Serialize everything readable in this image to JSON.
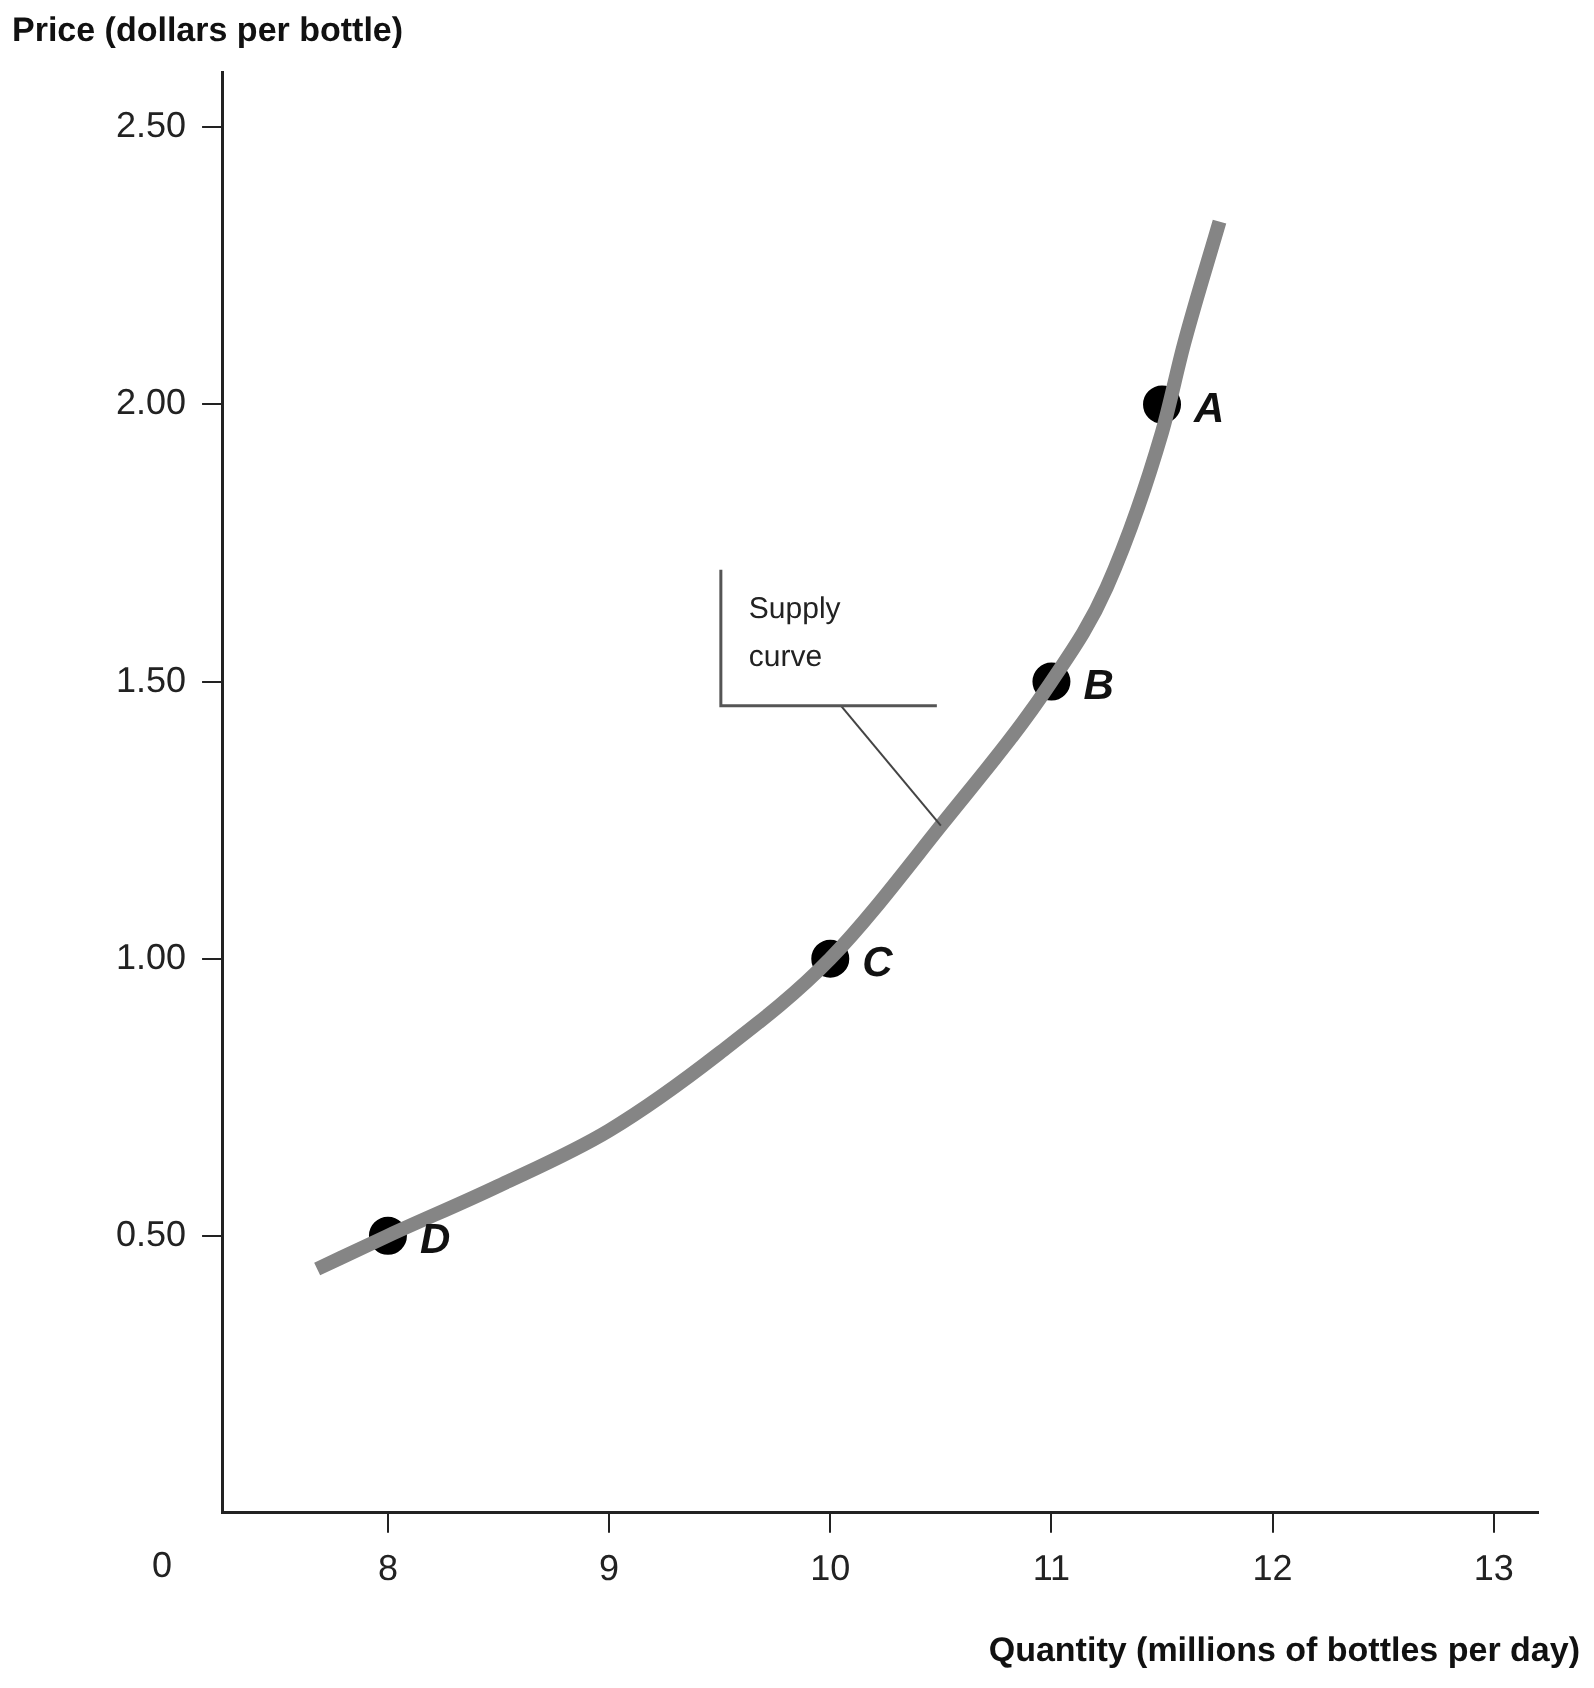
{
  "chart_data": {
    "type": "line",
    "xlabel": "Quantity (millions of bottles per day)",
    "ylabel": "Price (dollars per bottle)",
    "xlim": [
      7.25,
      13.2
    ],
    "xticks": [
      8,
      9,
      10,
      11,
      12,
      13
    ],
    "ylim": [
      0,
      2.6
    ],
    "yticks": [
      {
        "value": 0.5,
        "label": "0.50"
      },
      {
        "value": 1,
        "label": "1.00"
      },
      {
        "value": 1.5,
        "label": "1.50"
      },
      {
        "value": 2,
        "label": "2.00"
      },
      {
        "value": 2.5,
        "label": "2.50"
      }
    ],
    "grid": false,
    "legend": false,
    "series": [
      {
        "type": "line",
        "marker": "none",
        "color": "#858585",
        "x": [
          7.68,
          8,
          8.5,
          9,
          9.5,
          10,
          10.5,
          11,
          11.25,
          11.5,
          11.6,
          11.76
        ],
        "values": [
          0.44,
          0.5,
          0.59,
          0.69,
          0.83,
          1.0,
          1.24,
          1.5,
          1.67,
          1.95,
          2.11,
          2.33
        ]
      },
      {
        "type": "scatter",
        "marker": "circle",
        "color": "#000000",
        "x": [
          8,
          10,
          11,
          11.5
        ],
        "values": [
          0.5,
          1.0,
          1.5,
          2.0
        ]
      }
    ],
    "annotations": [
      {
        "text": "A",
        "x": 11.5,
        "y": 2.0
      },
      {
        "text": "B",
        "x": 11,
        "y": 1.5
      },
      {
        "text": "C",
        "x": 10,
        "y": 1.0
      },
      {
        "text": "D",
        "x": 8,
        "y": 0.5
      },
      "0",
      {
        "text": "Supply curve",
        "x": 10.5,
        "y": 1.24
      }
    ]
  }
}
